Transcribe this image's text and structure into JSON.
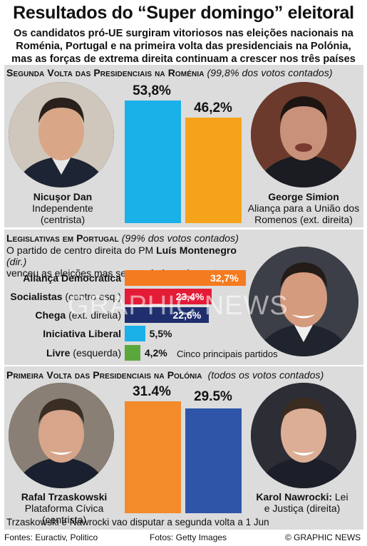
{
  "title": "Resultados do “Super domingo” eleitoral",
  "subtitle": "Os candidatos pró-UE surgiram vitoriosos nas eleições nacionais na Roménia, Portugal e na primeira volta das presidenciais na Polónia, mas as forças de extrema direita continuam a crescer nos três países",
  "romania": {
    "heading": "Segunda Volta das Presidenciais na Roménia",
    "note": "(99,8% dos votos contados)",
    "left": {
      "name": "Nicuşor Dan",
      "line1": "Independente",
      "line2": "(centrista)",
      "pct_label": "53,8%",
      "value": 53.8,
      "color": "#1ab0e8"
    },
    "right": {
      "name": "George Simion",
      "line1": "Aliança para a União dos",
      "line2": "Romenos (ext. direita)",
      "pct_label": "46,2%",
      "value": 46.2,
      "color": "#f5a31a"
    }
  },
  "portugal": {
    "heading": "Legislativas em Portugal",
    "note": "(99% dos votos contados)",
    "text_part1": "O partido de centro direita do PM ",
    "pm_name": "Luís Montenegro",
    "pm_note": " (dir.)",
    "text_line2": "venceu as eleições mas sem maioria parlamentar",
    "legend": "Cinco principais partidos",
    "parties": [
      {
        "name": "Aliança Democrática",
        "qual": "",
        "label": "32,7%",
        "value": 32.7,
        "color": "#f47b20"
      },
      {
        "name": "Socialistas",
        "qual": " (centro esq.)",
        "label": "23,4%",
        "value": 23.4,
        "color": "#e31b37"
      },
      {
        "name": "Chega",
        "qual": " (ext. direita)",
        "label": "22,6%",
        "value": 22.6,
        "color": "#1f2f6e"
      },
      {
        "name": "Iniciativa Liberal",
        "qual": "",
        "label": "5,5%",
        "value": 5.5,
        "color": "#1ab0e8"
      },
      {
        "name": "Livre",
        "qual": " (esquerda)",
        "label": "4,2%",
        "value": 4.2,
        "color": "#5aa83c"
      }
    ]
  },
  "poland": {
    "heading": "Primeira Volta das Presidenciais na Polónia",
    "note": "(todos os votos contados)",
    "left": {
      "name": "Rafal Trzaskowski",
      "line1": "Plataforma Cívica (centrista)",
      "pct_label": "31.4%",
      "value": 31.4,
      "color": "#f48b2b"
    },
    "right": {
      "name": "Karol Nawrocki:",
      "line1": " Lei",
      "line2": "e Justiça (direita)",
      "pct_label": "29.5%",
      "value": 29.5,
      "color": "#2f55a8"
    },
    "footnote": "Trzaskowski e Nawrocki vao disputar a segunda volta a 1 Jun"
  },
  "footer": {
    "sources": "Fontes: Euractiv, Politico",
    "photos": "Fotos: Getty Images",
    "credit": "© GRAPHIC NEWS"
  },
  "watermark": "GRAPHIC NEWS",
  "chart_data": [
    {
      "type": "bar",
      "title": "Segunda Volta das Presidenciais na Roménia",
      "categories": [
        "Nicuşor Dan",
        "George Simion"
      ],
      "values": [
        53.8,
        46.2
      ]
    },
    {
      "type": "bar",
      "title": "Legislativas em Portugal",
      "categories": [
        "Aliança Democrática",
        "Socialistas",
        "Chega",
        "Iniciativa Liberal",
        "Livre"
      ],
      "values": [
        32.7,
        23.4,
        22.6,
        5.5,
        4.2
      ]
    },
    {
      "type": "bar",
      "title": "Primeira Volta das Presidenciais na Polónia",
      "categories": [
        "Rafal Trzaskowski",
        "Karol Nawrocki"
      ],
      "values": [
        31.4,
        29.5
      ]
    }
  ]
}
